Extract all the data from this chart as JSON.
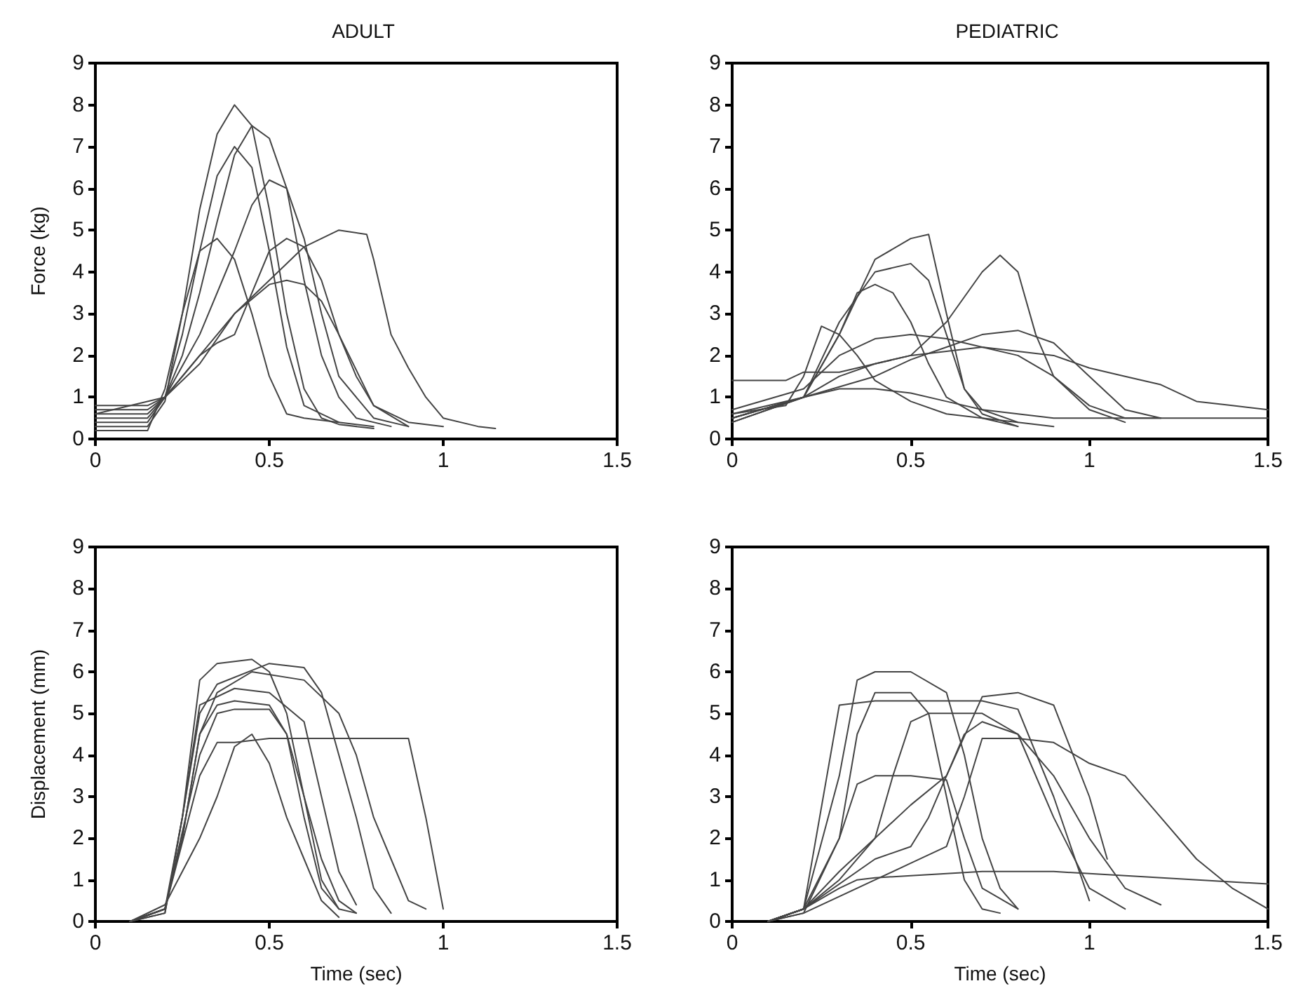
{
  "chart_data": [
    {
      "type": "line",
      "title": "ADULT",
      "ylabel": "Force (kg)",
      "xlim": [
        0,
        1.5
      ],
      "ylim": [
        0,
        9
      ],
      "xticks": [
        0,
        0.5,
        1,
        1.5
      ],
      "yticks": [
        0,
        1,
        2,
        3,
        4,
        5,
        6,
        7,
        8,
        9
      ],
      "marker": "none",
      "line_style": "solid",
      "grid": false,
      "series": [
        {
          "color": "#444444",
          "x": [
            0,
            0.15,
            0.2,
            0.25,
            0.3,
            0.35,
            0.4,
            0.45,
            0.5,
            0.55,
            0.6,
            0.65,
            0.7,
            0.8
          ],
          "values": [
            0.3,
            0.3,
            0.9,
            3,
            5.5,
            7.3,
            8,
            7.5,
            5.5,
            3,
            1.2,
            0.5,
            0.35,
            0.25
          ]
        },
        {
          "color": "#444444",
          "x": [
            0,
            0.15,
            0.2,
            0.25,
            0.3,
            0.35,
            0.4,
            0.45,
            0.5,
            0.55,
            0.6,
            0.65,
            0.7,
            0.75,
            0.85
          ],
          "values": [
            0.6,
            0.6,
            1.0,
            2.0,
            3.5,
            5.2,
            6.8,
            7.5,
            7.2,
            6.0,
            3.8,
            2.0,
            1.0,
            0.5,
            0.3
          ]
        },
        {
          "color": "#444444",
          "x": [
            0,
            0.15,
            0.2,
            0.3,
            0.4,
            0.5,
            0.6,
            0.7,
            0.78,
            0.8,
            0.85,
            0.9,
            0.95,
            1.0,
            1.1,
            1.15
          ],
          "values": [
            0.8,
            0.8,
            1.0,
            2.0,
            3.0,
            3.8,
            4.6,
            5.0,
            4.9,
            4.3,
            2.5,
            1.7,
            1.0,
            0.5,
            0.3,
            0.25
          ]
        },
        {
          "color": "#444444",
          "x": [
            0,
            0.15,
            0.2,
            0.25,
            0.3,
            0.35,
            0.4,
            0.45,
            0.5,
            0.55,
            0.6,
            0.7,
            0.8
          ],
          "values": [
            0.2,
            0.2,
            1.2,
            3.0,
            4.5,
            4.8,
            4.3,
            3.0,
            1.5,
            0.6,
            0.5,
            0.4,
            0.3
          ]
        },
        {
          "color": "#444444",
          "x": [
            0,
            0.15,
            0.2,
            0.3,
            0.4,
            0.5,
            0.55,
            0.6,
            0.65,
            0.7,
            0.75,
            0.8,
            0.9,
            1.0
          ],
          "values": [
            0.5,
            0.5,
            1.0,
            1.8,
            3.0,
            3.7,
            3.8,
            3.7,
            3.3,
            2.5,
            1.5,
            0.8,
            0.4,
            0.3
          ]
        },
        {
          "color": "#444444",
          "x": [
            0,
            0.15,
            0.2,
            0.3,
            0.4,
            0.45,
            0.5,
            0.55,
            0.6,
            0.65,
            0.7,
            0.8,
            0.9
          ],
          "values": [
            0.4,
            0.4,
            1.0,
            2.5,
            4.5,
            5.6,
            6.2,
            6.0,
            4.8,
            3.0,
            1.5,
            0.5,
            0.3
          ]
        },
        {
          "color": "#444444",
          "x": [
            0,
            0.15,
            0.2,
            0.25,
            0.3,
            0.35,
            0.4,
            0.45,
            0.5,
            0.55,
            0.6,
            0.7
          ],
          "values": [
            0.7,
            0.7,
            1.0,
            2.5,
            4.5,
            6.3,
            7.0,
            6.5,
            4.5,
            2.2,
            0.8,
            0.4
          ]
        },
        {
          "color": "#444444",
          "x": [
            0,
            0.2,
            0.3,
            0.35,
            0.4,
            0.45,
            0.5,
            0.55,
            0.6,
            0.65,
            0.7,
            0.8,
            0.9
          ],
          "values": [
            0.6,
            1.0,
            2.0,
            2.3,
            2.5,
            3.5,
            4.5,
            4.8,
            4.6,
            3.8,
            2.5,
            0.8,
            0.3
          ]
        }
      ]
    },
    {
      "type": "line",
      "title": "PEDIATRIC",
      "xlim": [
        0,
        1.5
      ],
      "ylim": [
        0,
        9
      ],
      "xticks": [
        0,
        0.5,
        1,
        1.5
      ],
      "yticks": [
        0,
        1,
        2,
        3,
        4,
        5,
        6,
        7,
        8,
        9
      ],
      "marker": "none",
      "line_style": "solid",
      "grid": false,
      "series": [
        {
          "color": "#444444",
          "x": [
            0,
            0.2,
            0.3,
            0.4,
            0.5,
            0.55,
            0.6,
            0.65,
            0.7,
            0.8,
            0.9
          ],
          "values": [
            0.6,
            1.0,
            2.5,
            4.3,
            4.8,
            4.9,
            3.0,
            1.2,
            0.7,
            0.4,
            0.3
          ]
        },
        {
          "color": "#444444",
          "x": [
            0,
            0.2,
            0.3,
            0.4,
            0.5,
            0.6,
            0.7,
            0.75,
            0.8,
            0.85,
            0.9,
            1.0,
            1.1
          ],
          "values": [
            0.5,
            1.0,
            1.5,
            1.8,
            2.0,
            2.8,
            4.0,
            4.4,
            4.0,
            2.5,
            1.5,
            0.7,
            0.4
          ]
        },
        {
          "color": "#444444",
          "x": [
            0,
            0.15,
            0.2,
            0.3,
            0.4,
            0.5,
            0.6,
            0.7,
            0.8,
            0.9,
            1.0,
            1.1,
            1.2,
            1.3,
            1.4,
            1.5
          ],
          "values": [
            1.4,
            1.4,
            1.6,
            1.6,
            1.8,
            2.0,
            2.1,
            2.2,
            2.1,
            2.0,
            1.7,
            1.5,
            1.3,
            0.9,
            0.8,
            0.7
          ]
        },
        {
          "color": "#444444",
          "x": [
            0,
            0.2,
            0.3,
            0.35,
            0.4,
            0.45,
            0.5,
            0.55,
            0.6,
            0.7,
            0.8
          ],
          "values": [
            0.5,
            1.0,
            2.5,
            3.5,
            3.7,
            3.5,
            2.8,
            1.8,
            1.0,
            0.5,
            0.3
          ]
        },
        {
          "color": "#444444",
          "x": [
            0,
            0.15,
            0.2,
            0.25,
            0.3,
            0.35,
            0.4,
            0.5,
            0.6,
            0.7,
            0.8
          ],
          "values": [
            0.6,
            0.8,
            1.5,
            2.7,
            2.5,
            2.0,
            1.4,
            0.9,
            0.6,
            0.5,
            0.4
          ]
        },
        {
          "color": "#444444",
          "x": [
            0,
            0.2,
            0.3,
            0.4,
            0.5,
            0.6,
            0.7,
            0.8,
            0.9,
            1.0,
            1.1,
            1.2
          ],
          "values": [
            0.7,
            1.2,
            2.0,
            2.4,
            2.5,
            2.4,
            2.2,
            2.0,
            1.5,
            0.8,
            0.5,
            0.5
          ]
        },
        {
          "color": "#444444",
          "x": [
            0,
            0.2,
            0.4,
            0.5,
            0.6,
            0.7,
            0.8,
            0.9,
            1.0,
            1.1,
            1.2
          ],
          "values": [
            0.4,
            1.0,
            1.5,
            1.9,
            2.2,
            2.5,
            2.6,
            2.3,
            1.5,
            0.7,
            0.5
          ]
        },
        {
          "color": "#444444",
          "x": [
            0,
            0.2,
            0.3,
            0.4,
            0.5,
            0.6,
            0.7,
            0.8,
            0.9,
            1.0,
            1.5
          ],
          "values": [
            0.5,
            1.0,
            1.2,
            1.2,
            1.1,
            0.9,
            0.7,
            0.6,
            0.5,
            0.5,
            0.5
          ]
        },
        {
          "color": "#444444",
          "x": [
            0,
            0.2,
            0.3,
            0.4,
            0.5,
            0.55,
            0.6,
            0.65,
            0.7,
            0.8
          ],
          "values": [
            0.4,
            1.0,
            2.8,
            4.0,
            4.2,
            3.8,
            2.5,
            1.2,
            0.6,
            0.3
          ]
        }
      ]
    },
    {
      "type": "line",
      "xlabel": "Time (sec)",
      "ylabel": "Displacement (mm)",
      "xlim": [
        0,
        1.5
      ],
      "ylim": [
        0,
        9
      ],
      "xticks": [
        0,
        0.5,
        1,
        1.5
      ],
      "yticks": [
        0,
        1,
        2,
        3,
        4,
        5,
        6,
        7,
        8,
        9
      ],
      "marker": "none",
      "line_style": "solid",
      "grid": false,
      "series": [
        {
          "color": "#444444",
          "x": [
            0.1,
            0.2,
            0.25,
            0.3,
            0.35,
            0.45,
            0.5,
            0.55,
            0.6,
            0.65,
            0.7,
            0.75
          ],
          "values": [
            0,
            0.2,
            2.5,
            5.8,
            6.2,
            6.3,
            6.0,
            5.0,
            3.0,
            1.0,
            0.3,
            0.2
          ]
        },
        {
          "color": "#444444",
          "x": [
            0.1,
            0.2,
            0.25,
            0.3,
            0.35,
            0.5,
            0.6,
            0.65,
            0.7,
            0.75,
            0.8,
            0.85
          ],
          "values": [
            0,
            0.3,
            2.5,
            5,
            5.7,
            6.2,
            6.1,
            5.5,
            4,
            2.5,
            0.8,
            0.2
          ]
        },
        {
          "color": "#444444",
          "x": [
            0.1,
            0.2,
            0.3,
            0.35,
            0.4,
            0.5,
            0.6,
            0.7,
            0.8,
            0.9,
            0.95,
            1.0
          ],
          "values": [
            0,
            0.3,
            3.5,
            4.3,
            4.3,
            4.4,
            4.4,
            4.4,
            4.4,
            4.4,
            2.5,
            0.3
          ]
        },
        {
          "color": "#444444",
          "x": [
            0.1,
            0.2,
            0.25,
            0.3,
            0.35,
            0.4,
            0.5,
            0.55,
            0.6,
            0.65,
            0.7,
            0.75
          ],
          "values": [
            0,
            0.3,
            2,
            4.5,
            5.2,
            5.3,
            5.2,
            4.5,
            3,
            1.5,
            0.5,
            0.2
          ]
        },
        {
          "color": "#444444",
          "x": [
            0.1,
            0.2,
            0.3,
            0.35,
            0.4,
            0.45,
            0.5,
            0.55,
            0.6,
            0.65,
            0.7
          ],
          "values": [
            0,
            0.4,
            2.0,
            3.0,
            4.2,
            4.5,
            3.8,
            2.5,
            1.5,
            0.5,
            0.1
          ]
        },
        {
          "color": "#444444",
          "x": [
            0.1,
            0.2,
            0.25,
            0.3,
            0.35,
            0.45,
            0.6,
            0.7,
            0.75,
            0.8,
            0.85,
            0.9,
            0.95
          ],
          "values": [
            0,
            0.3,
            2.0,
            4.5,
            5.5,
            6.0,
            5.8,
            5.0,
            4.0,
            2.5,
            1.5,
            0.5,
            0.3
          ]
        },
        {
          "color": "#444444",
          "x": [
            0.1,
            0.2,
            0.25,
            0.3,
            0.4,
            0.5,
            0.6,
            0.65,
            0.7,
            0.75
          ],
          "values": [
            0,
            0.2,
            2.5,
            5.2,
            5.6,
            5.5,
            4.8,
            3,
            1.2,
            0.4
          ]
        },
        {
          "color": "#444444",
          "x": [
            0.1,
            0.2,
            0.3,
            0.35,
            0.4,
            0.5,
            0.55,
            0.6,
            0.65,
            0.7
          ],
          "values": [
            0,
            0.3,
            4.0,
            5.0,
            5.1,
            5.1,
            4.5,
            2.5,
            0.8,
            0.3
          ]
        }
      ]
    },
    {
      "type": "line",
      "xlabel": "Time (sec)",
      "xlim": [
        0,
        1.5
      ],
      "ylim": [
        0,
        9
      ],
      "xticks": [
        0,
        0.5,
        1,
        1.5
      ],
      "yticks": [
        0,
        1,
        2,
        3,
        4,
        5,
        6,
        7,
        8,
        9
      ],
      "marker": "none",
      "line_style": "solid",
      "grid": false,
      "series": [
        {
          "color": "#444444",
          "x": [
            0.1,
            0.2,
            0.3,
            0.35,
            0.4,
            0.5,
            0.55,
            0.6,
            0.65,
            0.7,
            0.75
          ],
          "values": [
            0,
            0.2,
            2,
            4.5,
            5.5,
            5.5,
            5.0,
            3.0,
            1.0,
            0.3,
            0.2
          ]
        },
        {
          "color": "#444444",
          "x": [
            0.1,
            0.2,
            0.3,
            0.35,
            0.4,
            0.5,
            0.6,
            0.65,
            0.7,
            0.75,
            0.8
          ],
          "values": [
            0,
            0.3,
            3.5,
            5.8,
            6.0,
            6.0,
            5.5,
            4,
            2,
            0.8,
            0.3
          ]
        },
        {
          "color": "#444444",
          "x": [
            0.1,
            0.2,
            0.3,
            0.4,
            0.5,
            0.6,
            0.7,
            0.8,
            0.9,
            1.0
          ],
          "values": [
            0,
            0.3,
            5.2,
            5.3,
            5.3,
            5.3,
            5.3,
            5.1,
            3,
            0.5
          ]
        },
        {
          "color": "#444444",
          "x": [
            0.1,
            0.2,
            0.4,
            0.5,
            0.6,
            0.65,
            0.7,
            0.8,
            0.9,
            1.0,
            1.1,
            1.2,
            1.3,
            1.4,
            1.5
          ],
          "values": [
            0,
            0.2,
            1.0,
            1.4,
            1.8,
            3.0,
            4.4,
            4.4,
            4.3,
            3.8,
            3.5,
            2.5,
            1.5,
            0.8,
            0.3
          ]
        },
        {
          "color": "#444444",
          "x": [
            0.1,
            0.2,
            0.3,
            0.35,
            0.4,
            0.5,
            0.6,
            0.7,
            0.8,
            0.9,
            1.5
          ],
          "values": [
            0,
            0.3,
            0.8,
            1.0,
            1.05,
            1.1,
            1.15,
            1.2,
            1.2,
            1.2,
            0.9
          ]
        },
        {
          "color": "#444444",
          "x": [
            0.1,
            0.2,
            0.3,
            0.35,
            0.4,
            0.5,
            0.6,
            0.65,
            0.7,
            0.8
          ],
          "values": [
            0,
            0.3,
            2,
            3.3,
            3.5,
            3.5,
            3.4,
            2,
            0.8,
            0.3
          ]
        },
        {
          "color": "#444444",
          "x": [
            0.1,
            0.2,
            0.4,
            0.5,
            0.55,
            0.6,
            0.65,
            0.7,
            0.8,
            0.9,
            1.0,
            1.1,
            1.2
          ],
          "values": [
            0,
            0.3,
            1.5,
            1.8,
            2.5,
            3.5,
            4.5,
            4.8,
            4.5,
            3.5,
            2,
            0.8,
            0.4
          ]
        },
        {
          "color": "#444444",
          "x": [
            0.1,
            0.2,
            0.3,
            0.4,
            0.45,
            0.5,
            0.55,
            0.6,
            0.7,
            0.8,
            0.9,
            1.0,
            1.1
          ],
          "values": [
            0,
            0.3,
            1,
            2.0,
            3.5,
            4.8,
            5.0,
            5.0,
            5.0,
            4.5,
            2.5,
            0.8,
            0.3
          ]
        },
        {
          "color": "#444444",
          "x": [
            0.1,
            0.2,
            0.3,
            0.4,
            0.5,
            0.6,
            0.7,
            0.8,
            0.9,
            1.0,
            1.05
          ],
          "values": [
            0,
            0.3,
            1.2,
            2,
            2.8,
            3.5,
            5.4,
            5.5,
            5.2,
            3.0,
            1.5
          ]
        }
      ]
    }
  ]
}
